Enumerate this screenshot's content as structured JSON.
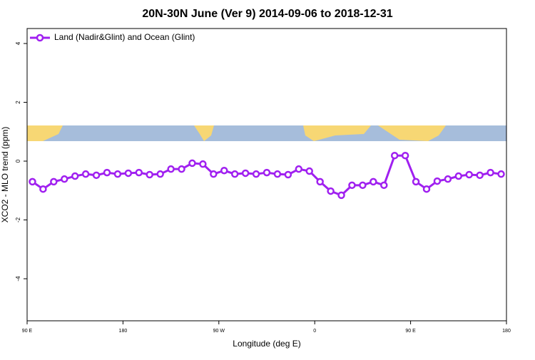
{
  "chart_data": {
    "type": "line",
    "title": "20N-30N June (Ver 9)   2014-09-06 to 2018-12-31",
    "x_label": "Longitude (deg E)",
    "y_label": "XCO2 - MLO trend (ppm)",
    "x": [
      95,
      105,
      115,
      125,
      135,
      145,
      155,
      165,
      175,
      185,
      195,
      205,
      215,
      225,
      235,
      245,
      255,
      265,
      275,
      285,
      295,
      305,
      315,
      325,
      335,
      345,
      355,
      365,
      375,
      385,
      395,
      405,
      415,
      425,
      435,
      445,
      455,
      465,
      475,
      485,
      495,
      505,
      515,
      525,
      535
    ],
    "series": [
      {
        "name": "Land (Nadir&Glint) and Ocean (Glint)",
        "color": "#a020f0",
        "values": [
          -0.7,
          -0.95,
          -0.7,
          -0.61,
          -0.51,
          -0.44,
          -0.48,
          -0.39,
          -0.44,
          -0.41,
          -0.39,
          -0.46,
          -0.44,
          -0.27,
          -0.27,
          -0.07,
          -0.1,
          -0.44,
          -0.32,
          -0.44,
          -0.41,
          -0.44,
          -0.39,
          -0.44,
          -0.46,
          -0.27,
          -0.34,
          -0.7,
          -1.02,
          -1.16,
          -0.82,
          -0.82,
          -0.7,
          -0.82,
          0.19,
          0.19,
          -0.7,
          -0.95,
          -0.68,
          -0.61,
          -0.51,
          -0.46,
          -0.48,
          -0.39,
          -0.44
        ]
      }
    ],
    "xlim": [
      90,
      540
    ],
    "xticks": [
      {
        "value": 90,
        "label": "90 E"
      },
      180,
      {
        "value": 270,
        "label": "90 W"
      },
      {
        "value": 360,
        "label": "0"
      },
      {
        "value": 450,
        "label": "90 E"
      },
      {
        "value": 540,
        "label": "180"
      }
    ],
    "ylim": [
      -5.43,
      4.51
    ],
    "yticks": [
      4,
      2,
      0,
      -2,
      -4
    ],
    "legend": "top-left"
  }
}
